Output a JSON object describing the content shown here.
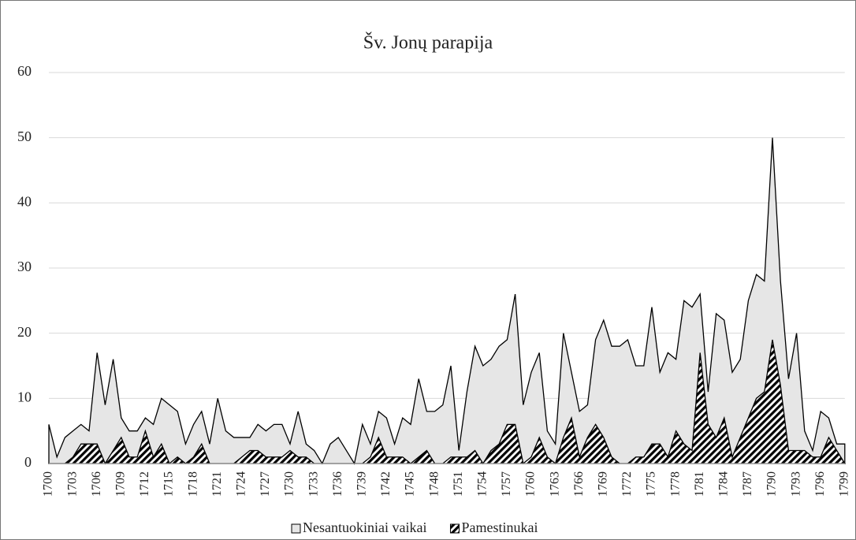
{
  "chart_data": {
    "type": "area",
    "title": "Šv. Jonų parapija",
    "categories": [
      "1700",
      null,
      null,
      "1703",
      null,
      null,
      "1706",
      null,
      null,
      "1709",
      null,
      null,
      "1712",
      null,
      null,
      "1715",
      null,
      null,
      "1718",
      null,
      null,
      "1721",
      null,
      null,
      "1724",
      null,
      null,
      "1727",
      null,
      null,
      "1730",
      null,
      null,
      "1733",
      null,
      null,
      "1736",
      null,
      null,
      "1739",
      null,
      null,
      "1742",
      null,
      null,
      "1745",
      null,
      null,
      "1748",
      null,
      null,
      "1751",
      null,
      null,
      "1754",
      null,
      null,
      "1757",
      null,
      null,
      "1760",
      null,
      null,
      "1763",
      null,
      null,
      "1766",
      null,
      null,
      "1769",
      null,
      null,
      "1772",
      null,
      null,
      "1775",
      null,
      null,
      "1778",
      null,
      null,
      "1781",
      null,
      null,
      "1784",
      null,
      null,
      "1787",
      null,
      null,
      "1790",
      null,
      null,
      "1793",
      null,
      null,
      "1796",
      null,
      null,
      "1799"
    ],
    "series": [
      {
        "name": "Nesantuokiniai vaikai",
        "color": "#e6e6e6",
        "values": [
          6,
          1,
          4,
          5,
          6,
          5,
          17,
          9,
          16,
          7,
          5,
          5,
          7,
          6,
          10,
          9,
          8,
          3,
          6,
          8,
          3,
          10,
          5,
          4,
          4,
          4,
          6,
          5,
          6,
          6,
          3,
          8,
          3,
          2,
          0,
          3,
          4,
          2,
          0,
          6,
          3,
          8,
          7,
          3,
          7,
          6,
          13,
          8,
          8,
          9,
          15,
          2,
          11,
          18,
          15,
          16,
          18,
          19,
          26,
          9,
          14,
          17,
          5,
          3,
          20,
          14,
          8,
          9,
          19,
          22,
          18,
          18,
          19,
          15,
          15,
          24,
          14,
          17,
          16,
          25,
          24,
          26,
          11,
          23,
          22,
          14,
          16,
          25,
          29,
          28,
          50,
          28,
          13,
          20,
          5,
          2,
          8,
          7,
          3,
          3
        ]
      },
      {
        "name": "Pamestinukai",
        "color": "#000000",
        "values": [
          0,
          0,
          0,
          1,
          3,
          3,
          3,
          0,
          2,
          4,
          1,
          1,
          5,
          1,
          3,
          0,
          1,
          0,
          1,
          3,
          0,
          0,
          0,
          0,
          1,
          2,
          2,
          1,
          1,
          1,
          2,
          1,
          1,
          0,
          0,
          0,
          0,
          0,
          0,
          0,
          1,
          4,
          1,
          1,
          1,
          0,
          1,
          2,
          0,
          0,
          1,
          1,
          1,
          2,
          0,
          2,
          3,
          6,
          6,
          0,
          1,
          4,
          1,
          0,
          4,
          7,
          1,
          4,
          6,
          4,
          1,
          0,
          0,
          1,
          1,
          3,
          3,
          1,
          5,
          3,
          2,
          17,
          6,
          4,
          7,
          1,
          4,
          7,
          10,
          11,
          19,
          12,
          2,
          2,
          2,
          1,
          1,
          4,
          2,
          0
        ]
      }
    ],
    "ylim": [
      0,
      60
    ],
    "yticks": [
      0,
      10,
      20,
      30,
      40,
      50,
      60
    ],
    "grid": true
  }
}
